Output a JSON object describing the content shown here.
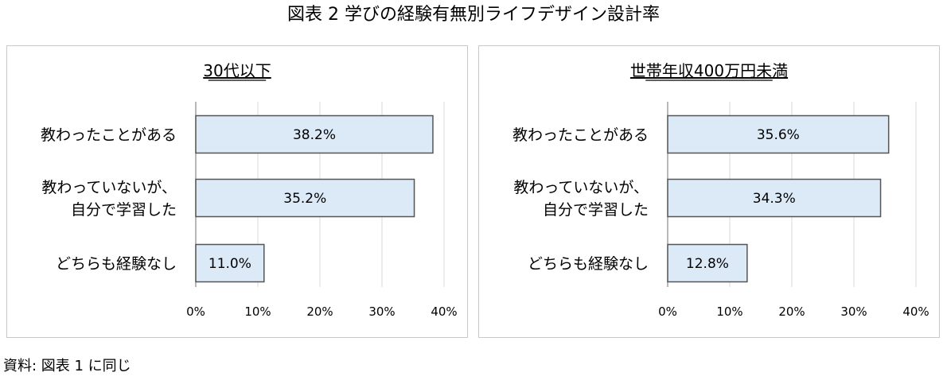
{
  "figure_title": "図表 2 学びの経験有無別ライフデザイン設計率",
  "source_note": "資料: 図表 1 に同じ",
  "colors": {
    "bar_fill": "#dce9f7",
    "bar_stroke": "#555555",
    "grid": "#d9d9d9",
    "panel_border": "#c9c9c9"
  },
  "chart_data": [
    {
      "type": "bar",
      "orientation": "horizontal",
      "title": "30代以下",
      "categories": [
        [
          "教わったことがある"
        ],
        [
          "教わっていないが、",
          "自分で学習した"
        ],
        [
          "どちらも経験なし"
        ]
      ],
      "values": [
        38.2,
        35.2,
        11.0
      ],
      "data_labels": [
        "38.2%",
        "35.2%",
        "11.0%"
      ],
      "xlim": [
        0,
        40
      ],
      "xticks": [
        "0%",
        "10%",
        "20%",
        "30%",
        "40%"
      ],
      "grid": true
    },
    {
      "type": "bar",
      "orientation": "horizontal",
      "title": "世帯年収400万円未満",
      "categories": [
        [
          "教わったことがある"
        ],
        [
          "教わっていないが、",
          "自分で学習した"
        ],
        [
          "どちらも経験なし"
        ]
      ],
      "values": [
        35.6,
        34.3,
        12.8
      ],
      "data_labels": [
        "35.6%",
        "34.3%",
        "12.8%"
      ],
      "xlim": [
        0,
        40
      ],
      "xticks": [
        "0%",
        "10%",
        "20%",
        "30%",
        "40%"
      ],
      "grid": true
    }
  ]
}
